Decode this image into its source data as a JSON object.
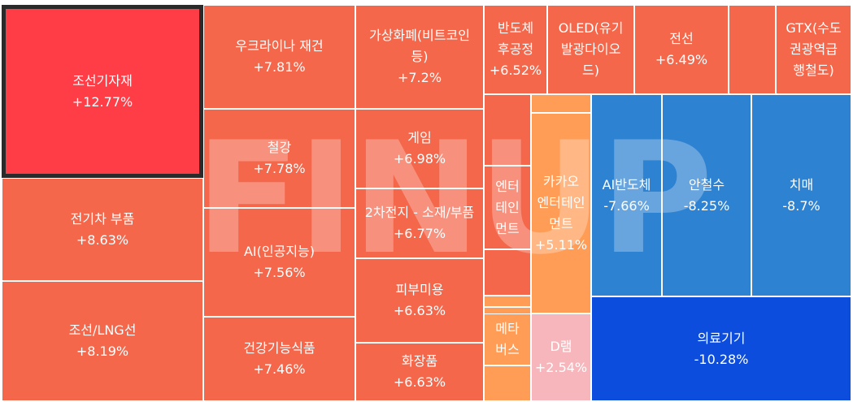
{
  "chart_data": {
    "type": "treemap",
    "watermark": "FINUP",
    "colors": {
      "strong_up": "#ff3d47",
      "up": "#f4674b",
      "up_light": "#ff9d57",
      "up_pale": "#f7b6bb",
      "down": "#2e82d2",
      "strong_down": "#0c4ddd"
    },
    "items": [
      {
        "name": "조선기자재",
        "value": "+12.77%",
        "change": 12.77
      },
      {
        "name": "전기차 부품",
        "value": "+8.63%",
        "change": 8.63
      },
      {
        "name": "조선/LNG선",
        "value": "+8.19%",
        "change": 8.19
      },
      {
        "name": "우크라이나 재건",
        "value": "+7.81%",
        "change": 7.81
      },
      {
        "name": "철강",
        "value": "+7.78%",
        "change": 7.78
      },
      {
        "name": "AI(인공지능)",
        "value": "+7.56%",
        "change": 7.56
      },
      {
        "name": "건강기능식품",
        "value": "+7.46%",
        "change": 7.46
      },
      {
        "name": "가상화폐(비트코인등)",
        "value": "+7.2%",
        "change": 7.2
      },
      {
        "name": "게임",
        "value": "+6.98%",
        "change": 6.98
      },
      {
        "name": "2차전지 - 소재/부품",
        "value": "+6.77%",
        "change": 6.77
      },
      {
        "name": "피부미용",
        "value": "+6.63%",
        "change": 6.63
      },
      {
        "name": "화장품",
        "value": "+6.63%",
        "change": 6.63
      },
      {
        "name": "반도체 후공정",
        "value": "+6.52%",
        "change": 6.52
      },
      {
        "name": "OLED(유기발광다이오드)",
        "value": "",
        "change": null
      },
      {
        "name": "전선",
        "value": "+6.49%",
        "change": 6.49
      },
      {
        "name": "",
        "value": "",
        "change": null
      },
      {
        "name": "GTX(수도권광역급행철도)",
        "value": "",
        "change": null
      },
      {
        "name": "",
        "value": "",
        "change": null
      },
      {
        "name": "엔터테인먼트",
        "value": "",
        "change": null
      },
      {
        "name": "",
        "value": "",
        "change": null
      },
      {
        "name": "",
        "value": "",
        "change": null
      },
      {
        "name": "",
        "value": "",
        "change": null
      },
      {
        "name": "메타버스",
        "value": "",
        "change": null
      },
      {
        "name": "",
        "value": "",
        "change": null
      },
      {
        "name": "",
        "value": "",
        "change": null
      },
      {
        "name": "카카오 엔터테인먼트",
        "value": "+5.11%",
        "change": 5.11
      },
      {
        "name": "D램",
        "value": "+2.54%",
        "change": 2.54
      },
      {
        "name": "AI반도체",
        "value": "-7.66%",
        "change": -7.66
      },
      {
        "name": "안철수",
        "value": "-8.25%",
        "change": -8.25
      },
      {
        "name": "치매",
        "value": "-8.7%",
        "change": -8.7
      },
      {
        "name": "의료기기",
        "value": "-10.28%",
        "change": -10.28
      }
    ]
  }
}
